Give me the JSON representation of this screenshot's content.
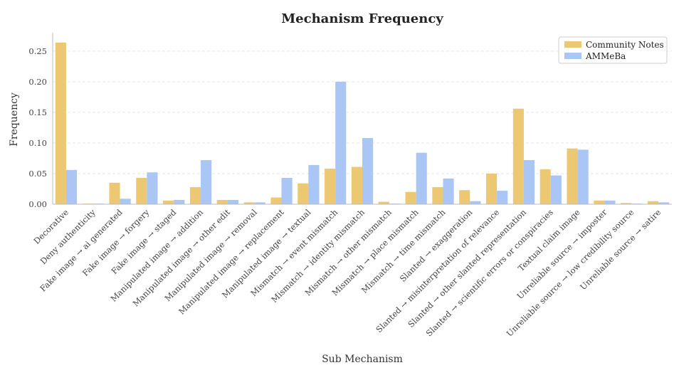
{
  "chart_data": {
    "type": "bar",
    "title": "Mechanism Frequency",
    "xlabel": "Sub Mechanism",
    "ylabel": "Frequency",
    "ylim": [
      0,
      0.28
    ],
    "yticks": [
      "0.00",
      "0.05",
      "0.10",
      "0.15",
      "0.20",
      "0.25"
    ],
    "ytick_values": [
      0,
      0.05,
      0.1,
      0.15,
      0.2,
      0.25
    ],
    "grid": true,
    "legend_position": "top-right",
    "categories": [
      "Decorative",
      "Deny authenticity",
      "Fake image → ai generated",
      "Fake image → forgery",
      "Fake image → staged",
      "Manipulated image → addition",
      "Manipulated image → other edit",
      "Manipulated image → removal",
      "Manipulated image → replacement",
      "Manipulated image → textual",
      "Mismatch → event mismatch",
      "Mismatch → identity mismatch",
      "Mismatch → other mismatch",
      "Mismatch → place mismatch",
      "Mismatch → time mismatch",
      "Slanted → exaggeration",
      "Slanted → misinterpretation of relevance",
      "Slanted → other slanted representation",
      "Slanted → scientific errors or conspiracies",
      "Textual claim image",
      "Unreliable source → imposter",
      "Unreliable source → low credibility source",
      "Unreliable source → satire"
    ],
    "series": [
      {
        "name": "Community Notes",
        "color": "#EDC872",
        "values": [
          0.264,
          0.001,
          0.035,
          0.043,
          0.006,
          0.028,
          0.007,
          0.003,
          0.011,
          0.034,
          0.058,
          0.061,
          0.004,
          0.02,
          0.028,
          0.023,
          0.05,
          0.156,
          0.057,
          0.091,
          0.006,
          0.002,
          0.005
        ]
      },
      {
        "name": "AMMeBa",
        "color": "#A9C6F5",
        "values": [
          0.056,
          0.001,
          0.009,
          0.052,
          0.007,
          0.072,
          0.007,
          0.003,
          0.043,
          0.064,
          0.2,
          0.108,
          0.001,
          0.084,
          0.042,
          0.005,
          0.022,
          0.072,
          0.047,
          0.089,
          0.006,
          0.001,
          0.003
        ]
      }
    ]
  }
}
